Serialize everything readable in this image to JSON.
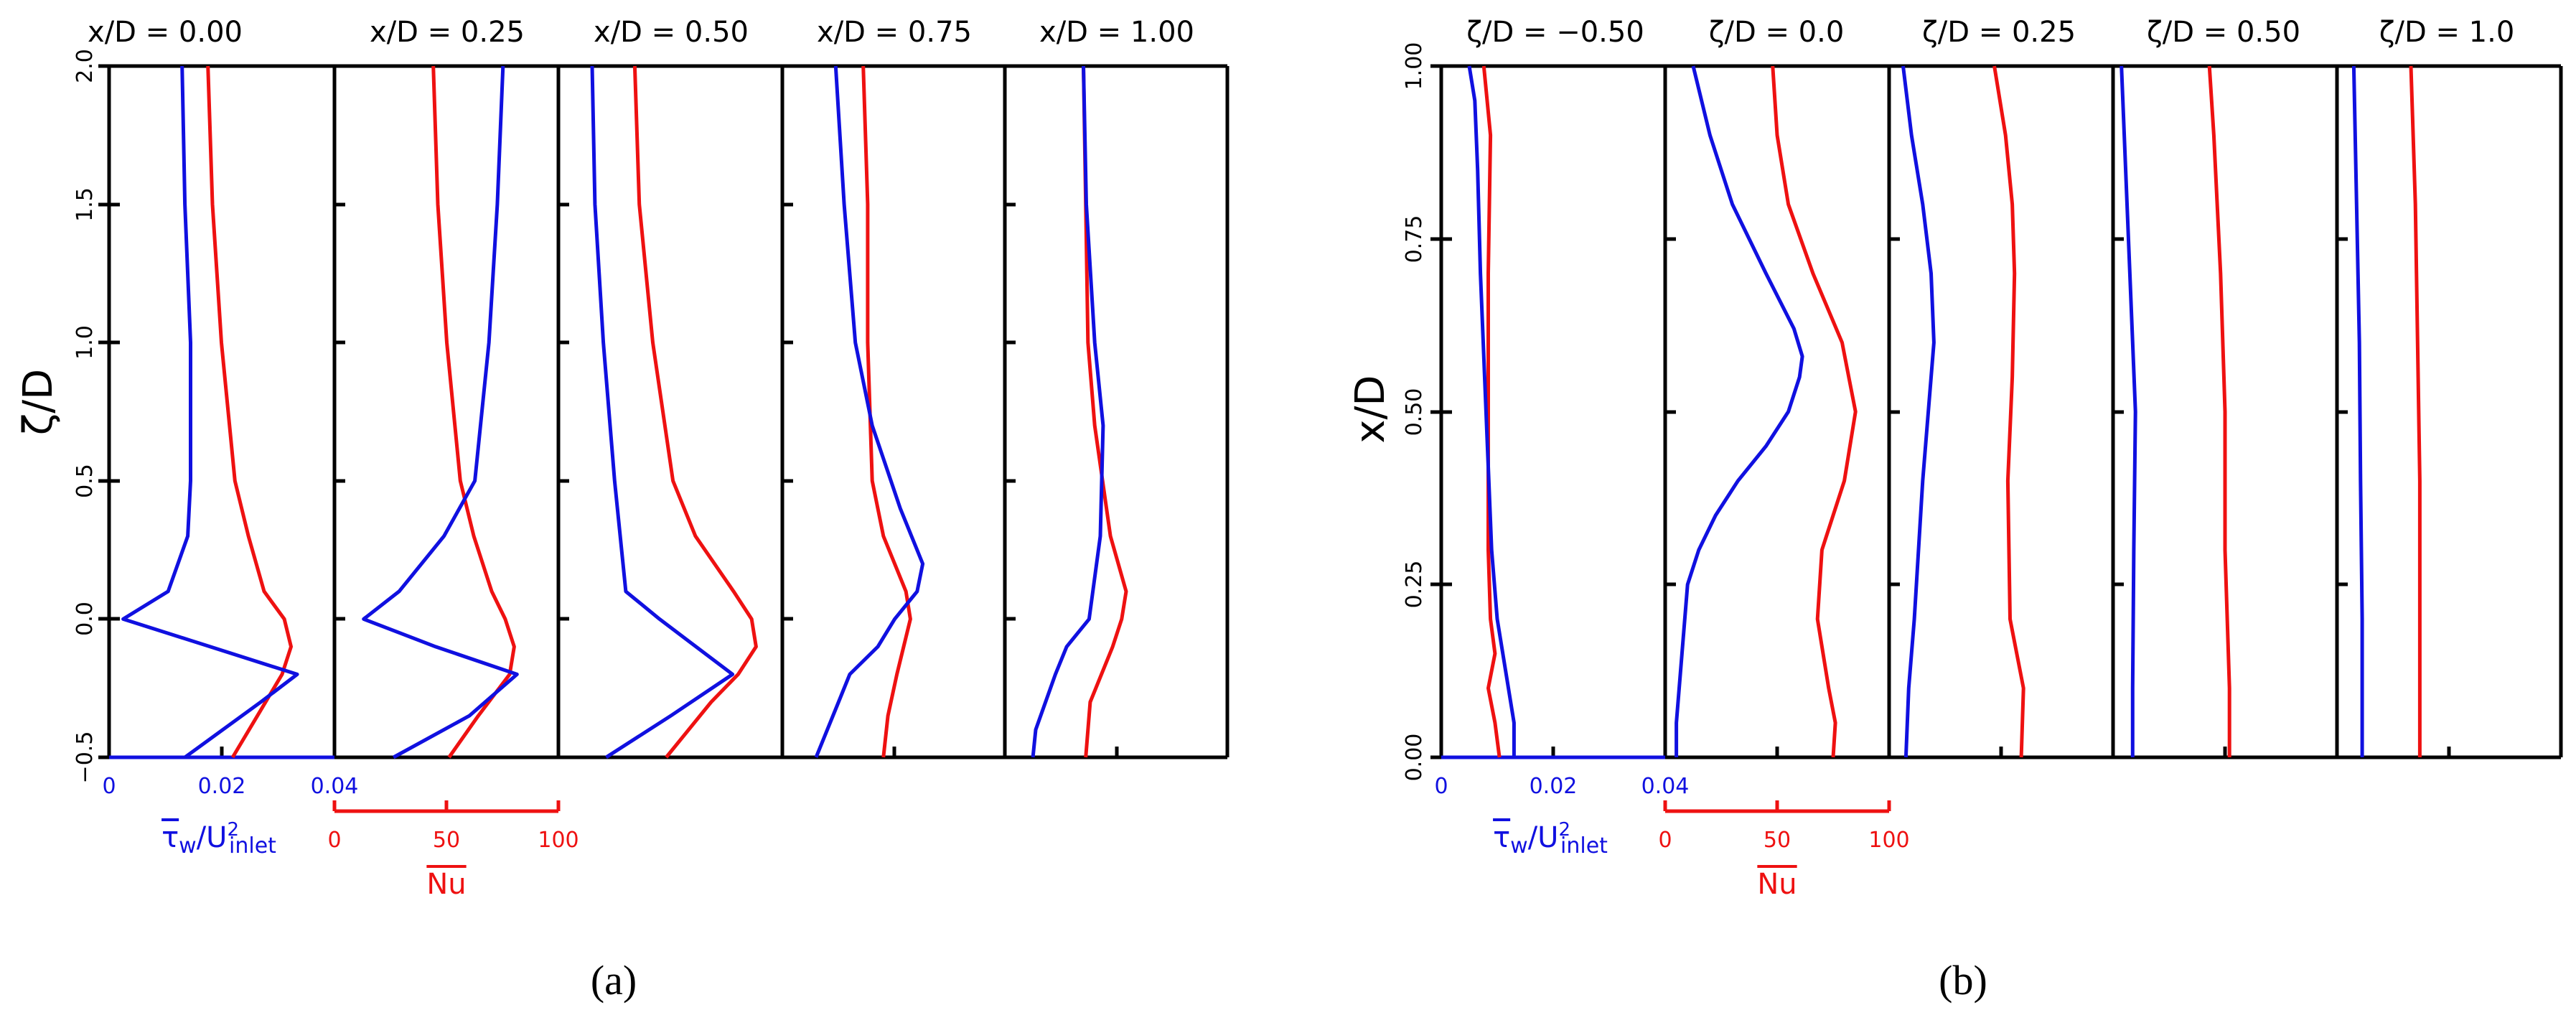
{
  "figure": {
    "panels": [
      {
        "id": "a",
        "label": "(a)",
        "ylabel": "ζ/D",
        "y_ticks": [
          "−0.5",
          "0.0",
          "0.5",
          "1.0",
          "1.5",
          "2.0"
        ],
        "subplots": [
          "x/D = 0.00",
          "x/D = 0.25",
          "x/D = 0.50",
          "x/D = 0.75",
          "x/D = 1.00"
        ],
        "tau_axis_ticks": [
          "0",
          "0.02",
          "0.04"
        ],
        "tau_axis_label": "τ̄w/U²inlet",
        "nu_axis_ticks": [
          "0",
          "50",
          "100"
        ],
        "nu_axis_label": "Nu"
      },
      {
        "id": "b",
        "label": "(b)",
        "ylabel": "x/D",
        "y_ticks": [
          "0.00",
          "0.25",
          "0.50",
          "0.75",
          "1.00"
        ],
        "subplots": [
          "ζ/D = −0.50",
          "ζ/D = 0.0",
          "ζ/D = 0.25",
          "ζ/D = 0.50",
          "ζ/D = 1.0"
        ],
        "tau_axis_ticks": [
          "0",
          "0.02",
          "0.04"
        ],
        "tau_axis_label": "τ̄w/U²inlet",
        "nu_axis_ticks": [
          "0",
          "50",
          "100"
        ],
        "nu_axis_label": "Nu"
      }
    ]
  },
  "chart_data": [
    {
      "type": "line",
      "title": "(a)",
      "ylabel": "ζ/D",
      "ylim": [
        -0.5,
        2.0
      ],
      "x_series_axes": {
        "tau_w": {
          "label": "τ̄w/U²inlet",
          "range": [
            0,
            0.04
          ]
        },
        "Nu": {
          "label": "Nu",
          "range": [
            0,
            100
          ]
        }
      },
      "colors": {
        "tau_w": "#1010e0",
        "Nu": "#ee1111"
      },
      "subplots": [
        {
          "title": "x/D = 0.00",
          "tau_w": {
            "y": [
              -0.5,
              -0.3,
              -0.2,
              -0.1,
              0.0,
              0.1,
              0.3,
              0.5,
              1.0,
              1.5,
              2.0
            ],
            "x": [
              0.0135,
              0.027,
              0.0335,
              0.018,
              0.0025,
              0.0105,
              0.014,
              0.0145,
              0.0145,
              0.0135,
              0.013
            ]
          },
          "Nu": {
            "y": [
              -0.5,
              -0.35,
              -0.2,
              -0.1,
              0.0,
              0.1,
              0.3,
              0.5,
              1.0,
              1.5,
              2.0
            ],
            "x": [
              55,
              66,
              77,
              81,
              78,
              69,
              62,
              56,
              50,
              46,
              44
            ]
          }
        },
        {
          "title": "x/D = 0.25",
          "tau_w": {
            "y": [
              -0.5,
              -0.35,
              -0.2,
              -0.1,
              0.0,
              0.1,
              0.3,
              0.5,
              1.0,
              1.5,
              2.0
            ],
            "x": [
              0.0105,
              0.024,
              0.0325,
              0.018,
              0.0052,
              0.0115,
              0.0195,
              0.025,
              0.0275,
              0.029,
              0.03
            ]
          },
          "Nu": {
            "y": [
              -0.5,
              -0.35,
              -0.2,
              -0.1,
              0.0,
              0.1,
              0.3,
              0.5,
              1.0,
              1.5,
              2.0
            ],
            "x": [
              51,
              64,
              78,
              80,
              76,
              70,
              62,
              56,
              50,
              46,
              44
            ]
          }
        },
        {
          "title": "x/D = 0.50",
          "tau_w": {
            "y": [
              -0.5,
              -0.35,
              -0.2,
              -0.1,
              0.0,
              0.1,
              0.3,
              0.5,
              1.0,
              1.5,
              2.0
            ],
            "x": [
              0.0085,
              0.02,
              0.031,
              0.0245,
              0.018,
              0.012,
              0.011,
              0.01,
              0.008,
              0.0065,
              0.006
            ]
          },
          "Nu": {
            "y": [
              -0.5,
              -0.3,
              -0.2,
              -0.1,
              0.0,
              0.1,
              0.3,
              0.5,
              1.0,
              1.5,
              2.0
            ],
            "x": [
              48,
              68,
              80,
              88,
              86,
              78,
              61,
              51,
              42,
              36,
              34
            ]
          }
        },
        {
          "title": "x/D = 0.75",
          "tau_w": {
            "y": [
              -0.5,
              -0.3,
              -0.2,
              -0.1,
              0.0,
              0.1,
              0.2,
              0.4,
              0.7,
              1.0,
              1.5,
              2.0
            ],
            "x": [
              0.006,
              0.01,
              0.012,
              0.017,
              0.02,
              0.024,
              0.025,
              0.021,
              0.016,
              0.013,
              0.011,
              0.0095
            ]
          },
          "Nu": {
            "y": [
              -0.5,
              -0.35,
              -0.2,
              -0.1,
              0.0,
              0.1,
              0.3,
              0.5,
              1.0,
              1.5,
              2.0
            ],
            "x": [
              45,
              47,
              51,
              54,
              57,
              55,
              45,
              40,
              38,
              38,
              36
            ]
          }
        },
        {
          "title": "x/D = 1.00",
          "tau_w": {
            "y": [
              -0.5,
              -0.4,
              -0.2,
              -0.1,
              0.0,
              0.3,
              0.7,
              1.0,
              1.5,
              2.0
            ],
            "x": [
              0.005,
              0.0055,
              0.009,
              0.011,
              0.015,
              0.017,
              0.0175,
              0.016,
              0.0145,
              0.014
            ]
          },
          "Nu": {
            "y": [
              -0.5,
              -0.3,
              -0.1,
              0.0,
              0.1,
              0.3,
              0.7,
              1.0,
              1.5,
              2.0
            ],
            "x": [
              36,
              38,
              48,
              52,
              54,
              47,
              40,
              37,
              36,
              35
            ]
          }
        }
      ]
    },
    {
      "type": "line",
      "title": "(b)",
      "ylabel": "x/D",
      "ylim": [
        0.0,
        1.0
      ],
      "x_series_axes": {
        "tau_w": {
          "label": "τ̄w/U²inlet",
          "range": [
            0,
            0.04
          ]
        },
        "Nu": {
          "label": "Nu",
          "range": [
            0,
            100
          ]
        }
      },
      "colors": {
        "tau_w": "#1010e0",
        "Nu": "#ee1111"
      },
      "subplots": [
        {
          "title": "ζ/D = −0.50",
          "tau_w": {
            "y": [
              0.0,
              0.05,
              0.1,
              0.2,
              0.3,
              0.5,
              0.7,
              0.85,
              0.95,
              1.0
            ],
            "x": [
              0.013,
              0.013,
              0.012,
              0.01,
              0.009,
              0.008,
              0.007,
              0.0065,
              0.006,
              0.005
            ]
          },
          "Nu": {
            "y": [
              0.0,
              0.05,
              0.1,
              0.15,
              0.2,
              0.3,
              0.5,
              0.7,
              0.9,
              1.0
            ],
            "x": [
              26,
              24,
              21,
              24,
              22,
              21,
              21,
              21,
              22,
              19
            ]
          }
        },
        {
          "title": "ζ/D = 0.0",
          "tau_w": {
            "y": [
              0.0,
              0.05,
              0.15,
              0.25,
              0.3,
              0.35,
              0.4,
              0.45,
              0.5,
              0.55,
              0.58,
              0.62,
              0.7,
              0.8,
              0.9,
              1.0
            ],
            "x": [
              0.002,
              0.002,
              0.003,
              0.004,
              0.006,
              0.009,
              0.013,
              0.018,
              0.022,
              0.024,
              0.0245,
              0.023,
              0.018,
              0.012,
              0.008,
              0.005
            ]
          },
          "Nu": {
            "y": [
              0.0,
              0.05,
              0.1,
              0.2,
              0.3,
              0.4,
              0.5,
              0.55,
              0.6,
              0.7,
              0.8,
              0.9,
              1.0
            ],
            "x": [
              75,
              76,
              73,
              68,
              70,
              80,
              85,
              82,
              79,
              66,
              55,
              50,
              48
            ]
          }
        },
        {
          "title": "ζ/D = 0.25",
          "tau_w": {
            "y": [
              0.0,
              0.1,
              0.2,
              0.4,
              0.6,
              0.7,
              0.8,
              0.9,
              1.0
            ],
            "x": [
              0.003,
              0.0035,
              0.0045,
              0.006,
              0.008,
              0.0075,
              0.006,
              0.004,
              0.0025
            ]
          },
          "Nu": {
            "y": [
              0.0,
              0.1,
              0.2,
              0.4,
              0.55,
              0.7,
              0.8,
              0.9,
              1.0
            ],
            "x": [
              59,
              60,
              54,
              53,
              55,
              56,
              55,
              52,
              47
            ]
          }
        },
        {
          "title": "ζ/D = 0.50",
          "tau_w": {
            "y": [
              0.0,
              0.1,
              0.3,
              0.5,
              0.7,
              0.9,
              1.0
            ],
            "x": [
              0.0035,
              0.0035,
              0.0037,
              0.004,
              0.003,
              0.002,
              0.0015
            ]
          },
          "Nu": {
            "y": [
              0.0,
              0.1,
              0.3,
              0.5,
              0.7,
              0.9,
              1.0
            ],
            "x": [
              52,
              52,
              50,
              50,
              48,
              45,
              43
            ]
          }
        },
        {
          "title": "ζ/D = 1.0",
          "tau_w": {
            "y": [
              0.0,
              0.2,
              0.4,
              0.6,
              0.8,
              1.0
            ],
            "x": [
              0.0045,
              0.0045,
              0.0042,
              0.004,
              0.0035,
              0.003
            ]
          },
          "Nu": {
            "y": [
              0.0,
              0.2,
              0.4,
              0.6,
              0.8,
              1.0
            ],
            "x": [
              37,
              37,
              37,
              36,
              35,
              33
            ]
          }
        }
      ]
    }
  ]
}
